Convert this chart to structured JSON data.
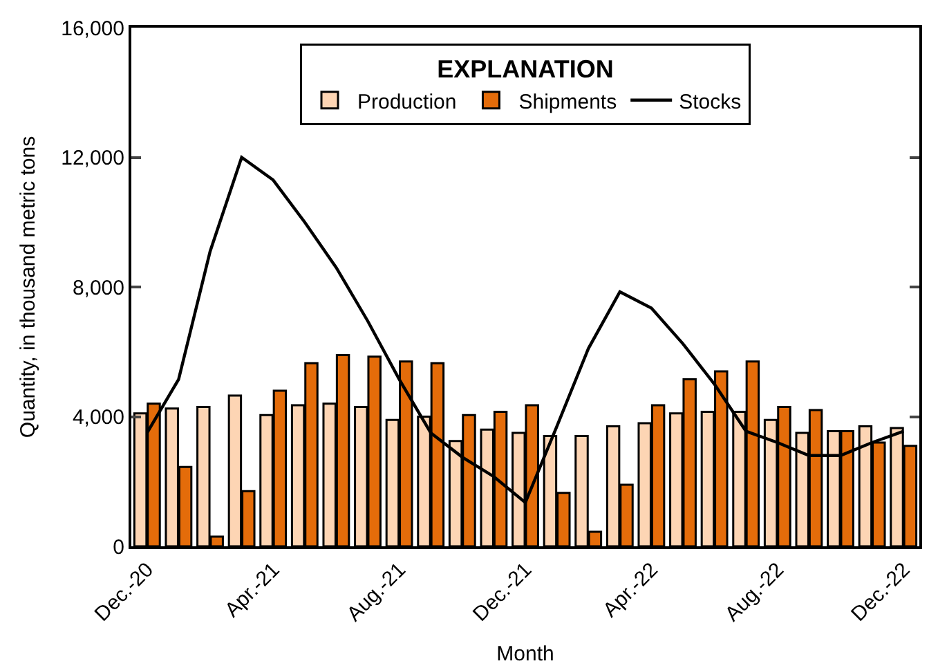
{
  "chart_data": {
    "type": "bar",
    "xlabel": "Month",
    "ylabel": "Quantity, in thousand metric tons",
    "legend_title": "EXPLANATION",
    "legend": "top",
    "categories": [
      "Dec.-20",
      null,
      null,
      null,
      "Apr.-21",
      null,
      null,
      null,
      "Aug.-21",
      null,
      null,
      null,
      "Dec.-21",
      null,
      null,
      null,
      "Apr.-22",
      null,
      null,
      null,
      "Aug.-22",
      null,
      null,
      null,
      "Dec.-22"
    ],
    "series": [
      {
        "name": "Production",
        "color": "#fdd5b4",
        "values": [
          4100,
          4250,
          4300,
          4650,
          4050,
          4350,
          4400,
          4300,
          3900,
          4000,
          3250,
          3600,
          3500,
          3400,
          3400,
          3700,
          3800,
          4100,
          4150,
          4150,
          3900,
          3500,
          3550,
          3700,
          3650
        ]
      },
      {
        "name": "Shipments",
        "color": "#e46c0a",
        "values": [
          4400,
          2450,
          300,
          1700,
          4800,
          5650,
          5900,
          5850,
          5700,
          5650,
          4050,
          4150,
          4350,
          1650,
          450,
          1900,
          4350,
          5150,
          5400,
          5700,
          4300,
          4200,
          3550,
          3200,
          3100
        ]
      },
      {
        "name": "Stocks",
        "type": "line",
        "color": "#000000",
        "values": [
          3500,
          5150,
          9100,
          12000,
          11300,
          10000,
          8600,
          6950,
          5150,
          3500,
          2750,
          2150,
          1350,
          3700,
          6100,
          7850,
          7350,
          6250,
          5000,
          3550,
          3200,
          2800,
          2800,
          3200,
          3550
        ]
      }
    ],
    "ylim": [
      0,
      16000
    ],
    "yticks": [
      {
        "value": 0,
        "label": "0"
      },
      {
        "value": 4000,
        "label": "4,000"
      },
      {
        "value": 8000,
        "label": "8,000"
      },
      {
        "value": 12000,
        "label": "12,000"
      },
      {
        "value": 16000,
        "label": "16,000"
      }
    ]
  }
}
